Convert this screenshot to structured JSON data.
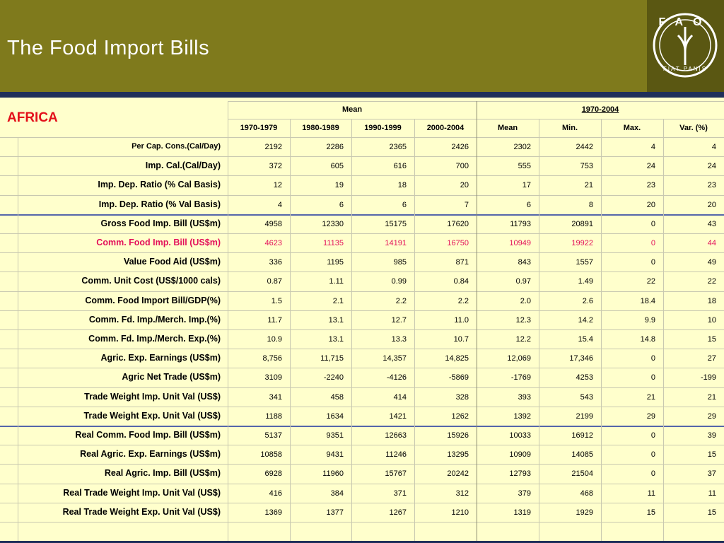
{
  "header": {
    "title": "The Food Import Bills",
    "logo": {
      "text": "FAO",
      "motto": "FIAT PANIS"
    }
  },
  "table": {
    "region": "AFRICA",
    "group_headers": [
      "Mean",
      "1970-2004"
    ],
    "columns": [
      "1970-1979",
      "1980-1989",
      "1990-1999",
      "2000-2004",
      "Mean",
      "Min.",
      "Max.",
      "Var. (%)"
    ],
    "rows": [
      {
        "label": "Per Cap. Cons.(Cal/Day)",
        "values": [
          "2192",
          "2286",
          "2365",
          "2426",
          "2302",
          "2442",
          "4",
          "4"
        ]
      },
      {
        "label": "Imp. Cal.(Cal/Day)",
        "values": [
          "372",
          "605",
          "616",
          "700",
          "555",
          "753",
          "24",
          "24"
        ]
      },
      {
        "label": "Imp. Dep. Ratio (% Cal Basis)",
        "values": [
          "12",
          "19",
          "18",
          "20",
          "17",
          "21",
          "23",
          "23"
        ]
      },
      {
        "label": "Imp. Dep. Ratio (% Val Basis)",
        "values": [
          "4",
          "6",
          "6",
          "7",
          "6",
          "8",
          "20",
          "20"
        ]
      },
      {
        "label": "Gross Food Imp. Bill (US$m)",
        "values": [
          "4958",
          "12330",
          "15175",
          "17620",
          "11793",
          "20891",
          "0",
          "43"
        ]
      },
      {
        "label": "Comm. Food Imp. Bill (US$m)",
        "color": "#e3105a",
        "values": [
          "4623",
          "11135",
          "14191",
          "16750",
          "10949",
          "19922",
          "0",
          "44"
        ]
      },
      {
        "label": "Value Food Aid (US$m)",
        "values": [
          "336",
          "1195",
          "985",
          "871",
          "843",
          "1557",
          "0",
          "49"
        ]
      },
      {
        "label": "Comm. Unit Cost (US$/1000 cals)",
        "values": [
          "0.87",
          "1.11",
          "0.99",
          "0.84",
          "0.97",
          "1.49",
          "22",
          "22"
        ]
      },
      {
        "label": "Comm. Food Import Bill/GDP(%)",
        "values": [
          "1.5",
          "2.1",
          "2.2",
          "2.2",
          "2.0",
          "2.6",
          "18.4",
          "18"
        ]
      },
      {
        "label": "Comm. Fd. Imp./Merch. Imp.(%)",
        "values": [
          "11.7",
          "13.1",
          "12.7",
          "11.0",
          "12.3",
          "14.2",
          "9.9",
          "10"
        ]
      },
      {
        "label": "Comm. Fd. Imp./Merch. Exp.(%)",
        "values": [
          "10.9",
          "13.1",
          "13.3",
          "10.7",
          "12.2",
          "15.4",
          "14.8",
          "15"
        ]
      },
      {
        "label": "Agric. Exp. Earnings (US$m)",
        "values": [
          "8,756",
          "11,715",
          "14,357",
          "14,825",
          "12,069",
          "17,346",
          "0",
          "27"
        ]
      },
      {
        "label": "Agric Net Trade (US$m)",
        "values": [
          "3109",
          "-2240",
          "-4126",
          "-5869",
          "-1769",
          "4253",
          "0",
          "-199"
        ]
      },
      {
        "label": "Trade Weight Imp. Unit Val (US$)",
        "values": [
          "341",
          "458",
          "414",
          "328",
          "393",
          "543",
          "21",
          "21"
        ]
      },
      {
        "label": "Trade Weight Exp. Unit Val (US$)",
        "values": [
          "1188",
          "1634",
          "1421",
          "1262",
          "1392",
          "2199",
          "29",
          "29"
        ]
      },
      {
        "label": "Real Comm. Food Imp. Bill (US$m)",
        "values": [
          "5137",
          "9351",
          "12663",
          "15926",
          "10033",
          "16912",
          "0",
          "39"
        ]
      },
      {
        "label": "Real Agric. Exp. Earnings (US$m)",
        "values": [
          "10858",
          "9431",
          "11246",
          "13295",
          "10909",
          "14085",
          "0",
          "15"
        ]
      },
      {
        "label": "Real Agric. Imp. Bill (US$m)",
        "values": [
          "6928",
          "11960",
          "15767",
          "20242",
          "12793",
          "21504",
          "0",
          "37"
        ]
      },
      {
        "label": "Real Trade Weight Imp. Unit Val (US$)",
        "values": [
          "416",
          "384",
          "371",
          "312",
          "379",
          "468",
          "11",
          "11"
        ]
      },
      {
        "label": "Real Trade Weight Exp. Unit Val (US$)",
        "values": [
          "1369",
          "1377",
          "1267",
          "1210",
          "1319",
          "1929",
          "15",
          "15"
        ]
      }
    ]
  }
}
